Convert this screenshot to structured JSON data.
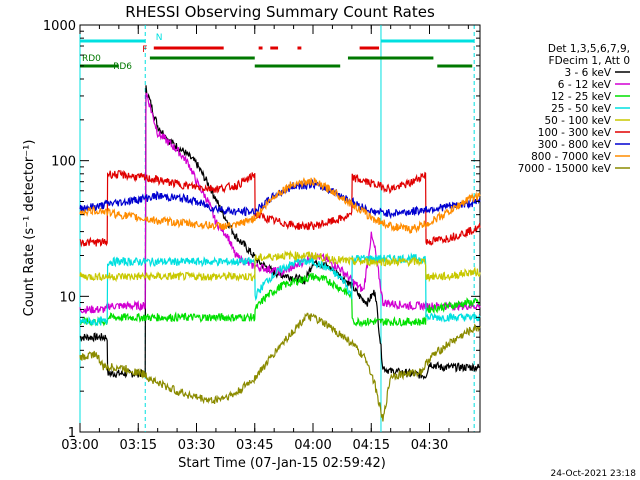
{
  "chart_data": {
    "type": "line",
    "title": "RHESSI Observing Summary Count Rates",
    "xlabel": "Start Time (07-Jan-15 02:59:42)",
    "ylabel": "Count Rate (s⁻¹ detector⁻¹)",
    "y_scale": "log",
    "ylim": [
      1,
      1000
    ],
    "y_ticks": [
      {
        "value": 1,
        "label": "1"
      },
      {
        "value": 10,
        "label": "10"
      },
      {
        "value": 100,
        "label": "100"
      },
      {
        "value": 1000,
        "label": "1000"
      }
    ],
    "x_range_min": [
      0,
      103
    ],
    "x_ticks": [
      {
        "min": 0,
        "label": "03:00"
      },
      {
        "min": 15,
        "label": "03:15"
      },
      {
        "min": 30,
        "label": "03:30"
      },
      {
        "min": 45,
        "label": "03:45"
      },
      {
        "min": 60,
        "label": "04:00"
      },
      {
        "min": 75,
        "label": "04:15"
      },
      {
        "min": 90,
        "label": "04:30"
      }
    ],
    "legend_header": [
      "Det 1,3,5,6,7,9,",
      "FDecim 1, Att 0"
    ],
    "legend_position": "right",
    "grid": false,
    "series": [
      {
        "name": "3 - 6 keV",
        "color": "#000000",
        "x": [
          0,
          7,
          7.1,
          16.8,
          17,
          20,
          23,
          27,
          30,
          34,
          36,
          40,
          44,
          46,
          50,
          54,
          58,
          60,
          63,
          66,
          70,
          72,
          74,
          76,
          78,
          80,
          85,
          89,
          90,
          93,
          95,
          97,
          100,
          103
        ],
        "y": [
          5,
          5,
          2.7,
          2.7,
          340,
          180,
          140,
          115,
          95,
          60,
          45,
          28,
          21,
          18,
          15,
          14,
          13,
          18,
          17,
          15,
          12,
          10,
          9,
          11,
          3,
          2.8,
          2.7,
          2.6,
          3.2,
          3.0,
          3.0,
          3.0,
          3.0,
          3.0
        ]
      },
      {
        "name": "6 - 12 keV",
        "color": "#d200d2",
        "x": [
          0,
          7,
          7.1,
          16.8,
          17,
          20,
          25,
          28,
          30,
          33,
          35,
          38,
          40,
          44,
          48,
          52,
          56,
          60,
          63,
          67,
          70,
          73,
          75,
          76,
          78,
          85,
          89,
          90,
          95,
          100,
          103
        ],
        "y": [
          8,
          8,
          8.5,
          8.5,
          320,
          160,
          120,
          95,
          70,
          50,
          35,
          28,
          20,
          17,
          16,
          15,
          17,
          20,
          19,
          16,
          13,
          11,
          28,
          22,
          9,
          8.5,
          8.5,
          8.5,
          8.5,
          8.5,
          8.5
        ]
      },
      {
        "name": "12 - 25 keV",
        "color": "#00e000",
        "x": [
          0,
          7,
          7.1,
          45,
          45.1,
          48,
          52,
          56,
          60,
          64,
          68,
          70,
          70.1,
          89,
          89.1,
          95,
          100,
          103
        ],
        "y": [
          6.5,
          6.5,
          7,
          7,
          8,
          10,
          12,
          13,
          14,
          13,
          11,
          10,
          6.5,
          6.5,
          8,
          8.5,
          9,
          9
        ]
      },
      {
        "name": "25 - 50 keV",
        "color": "#00e0e0",
        "x": [
          0,
          7,
          7.1,
          45,
          45.1,
          48,
          52,
          56,
          60,
          64,
          68,
          70,
          70.1,
          89,
          89.1,
          95,
          100,
          103
        ],
        "y": [
          6.5,
          6.5,
          18,
          18,
          10,
          13,
          16,
          18,
          18,
          16,
          13,
          10,
          19,
          19,
          7,
          7,
          7,
          7
        ]
      },
      {
        "name": "50 - 100 keV",
        "color": "#c8c800",
        "x": [
          0,
          7,
          7.1,
          45,
          45.1,
          52,
          58,
          60,
          64,
          70,
          70.1,
          89,
          89.1,
          95,
          100,
          103
        ],
        "y": [
          14,
          14,
          14,
          14,
          19,
          20,
          20,
          20,
          19,
          18,
          18,
          18,
          14,
          14,
          15,
          15
        ]
      },
      {
        "name": "100 - 300 keV",
        "color": "#e00000",
        "x": [
          0,
          7,
          7.1,
          12,
          20,
          28,
          35,
          40,
          44,
          45,
          45.1,
          50,
          56,
          60,
          64,
          68,
          70,
          70.1,
          75,
          80,
          85,
          89,
          89.1,
          95,
          100,
          103
        ],
        "y": [
          25,
          25,
          80,
          78,
          72,
          65,
          62,
          65,
          75,
          80,
          40,
          36,
          33,
          33,
          35,
          38,
          40,
          75,
          68,
          62,
          68,
          80,
          25,
          27,
          30,
          32
        ]
      },
      {
        "name": "300 - 800 keV",
        "color": "#0000d0",
        "x": [
          0,
          5,
          7,
          12,
          20,
          28,
          34,
          40,
          45,
          50,
          55,
          60,
          65,
          70,
          75,
          80,
          85,
          90,
          95,
          100,
          103
        ],
        "y": [
          45,
          46,
          48,
          50,
          55,
          52,
          45,
          42,
          42,
          55,
          65,
          67,
          60,
          50,
          42,
          41,
          42,
          44,
          46,
          48,
          50
        ]
      },
      {
        "name": "800 - 7000 keV",
        "color": "#ff8c00",
        "x": [
          0,
          5,
          10,
          15,
          20,
          25,
          30,
          35,
          40,
          45,
          50,
          55,
          60,
          65,
          70,
          75,
          80,
          85,
          90,
          95,
          100,
          103
        ],
        "y": [
          42,
          43,
          40,
          38,
          36,
          35,
          34,
          33,
          33,
          38,
          55,
          68,
          70,
          60,
          48,
          38,
          33,
          31,
          35,
          42,
          52,
          55
        ]
      },
      {
        "name": "7000 - 15000 keV",
        "color": "#8b8b00",
        "x": [
          0,
          4,
          6,
          10,
          16,
          20,
          25,
          30,
          34,
          40,
          45,
          48,
          52,
          56,
          58,
          60,
          64,
          68,
          70,
          74,
          76,
          78,
          80,
          85,
          88,
          90,
          95,
          100,
          103
        ],
        "y": [
          3.5,
          3.8,
          3,
          3,
          2.7,
          2.3,
          2.0,
          1.8,
          1.7,
          1.9,
          2.5,
          3.2,
          4.5,
          6,
          7,
          7,
          6,
          5,
          4.5,
          3.3,
          2.2,
          1.2,
          2.6,
          2.7,
          2.8,
          3.5,
          4.5,
          5.5,
          6
        ]
      }
    ],
    "vertical_lines": [
      {
        "min": 0,
        "color": "#00e0e0",
        "style": "solid"
      },
      {
        "min": 16.8,
        "color": "#00e0e0",
        "style": "dashed"
      },
      {
        "min": 77.5,
        "color": "#00e0e0",
        "style": "solid"
      },
      {
        "min": 101.5,
        "color": "#00e0e0",
        "style": "dashed"
      }
    ],
    "flag_bars": [
      {
        "label": "N",
        "color": "#00e0e0",
        "segments": [
          [
            0,
            16.8
          ],
          [
            77.5,
            101.5
          ]
        ],
        "label_at_min": 19
      },
      {
        "label": "F",
        "color": "#e00000",
        "segments": [
          [
            19,
            37
          ],
          [
            46,
            47
          ],
          [
            49,
            51
          ],
          [
            56,
            57
          ],
          [
            72,
            77
          ]
        ],
        "label_at_min": 15.5
      },
      {
        "label": "RD0",
        "color": "#007800",
        "segments": [
          [
            18,
            45
          ],
          [
            69,
            91
          ]
        ],
        "label_at_min": 0
      },
      {
        "label": "RD6",
        "color": "#007800",
        "segments": [
          [
            0,
            10
          ],
          [
            45,
            67
          ],
          [
            92,
            101
          ]
        ],
        "label_at_min": 8
      }
    ],
    "footer_text": "24-Oct-2021 23:18"
  }
}
